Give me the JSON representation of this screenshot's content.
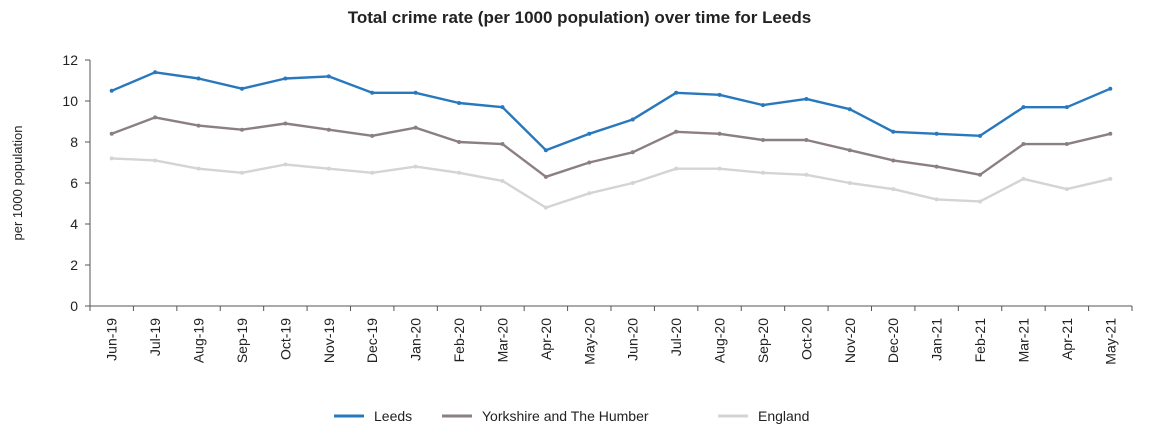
{
  "chart_data": {
    "type": "line",
    "title": "Total crime rate (per 1000 population) over time for Leeds",
    "xlabel": "",
    "ylabel": "per 1000 population",
    "ylim": [
      0,
      12
    ],
    "yticks": [
      0,
      2,
      4,
      6,
      8,
      10,
      12
    ],
    "grid": false,
    "legend_position": "bottom",
    "categories": [
      "Jun-19",
      "Jul-19",
      "Aug-19",
      "Sep-19",
      "Oct-19",
      "Nov-19",
      "Dec-19",
      "Jan-20",
      "Feb-20",
      "Mar-20",
      "Apr-20",
      "May-20",
      "Jun-20",
      "Jul-20",
      "Aug-20",
      "Sep-20",
      "Oct-20",
      "Nov-20",
      "Dec-20",
      "Jan-21",
      "Feb-21",
      "Mar-21",
      "Apr-21",
      "May-21"
    ],
    "series": [
      {
        "name": "Leeds",
        "color": "#2878BE",
        "values": [
          10.5,
          11.4,
          11.1,
          10.6,
          11.1,
          11.2,
          10.4,
          10.4,
          9.9,
          9.7,
          7.6,
          8.4,
          9.1,
          10.4,
          10.3,
          9.8,
          10.1,
          9.6,
          8.5,
          8.4,
          8.3,
          9.7,
          9.7,
          10.6
        ]
      },
      {
        "name": "Yorkshire and The Humber",
        "color": "#8C7F84",
        "values": [
          8.4,
          9.2,
          8.8,
          8.6,
          8.9,
          8.6,
          8.3,
          8.7,
          8.0,
          7.9,
          6.3,
          7.0,
          7.5,
          8.5,
          8.4,
          8.1,
          8.1,
          7.6,
          7.1,
          6.8,
          6.4,
          7.9,
          7.9,
          8.4
        ]
      },
      {
        "name": "England",
        "color": "#D4D4D4",
        "values": [
          7.2,
          7.1,
          6.7,
          6.5,
          6.9,
          6.7,
          6.5,
          6.8,
          6.5,
          6.1,
          4.8,
          5.5,
          6.0,
          6.7,
          6.7,
          6.5,
          6.4,
          6.0,
          5.7,
          5.2,
          5.1,
          6.2,
          5.7,
          6.2
        ]
      }
    ]
  }
}
